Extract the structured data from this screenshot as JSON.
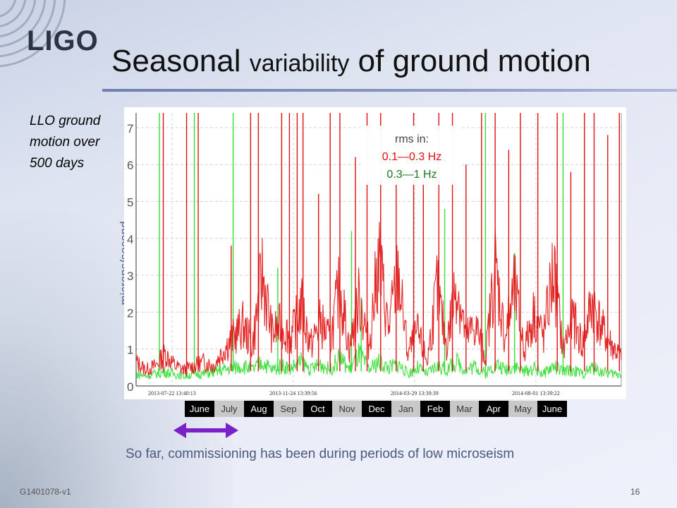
{
  "logo": "LIGO",
  "title": {
    "part1": "Seasonal ",
    "part2": "variability",
    "part3": " of ground motion"
  },
  "side_text": "LLO ground motion over 500 days",
  "caption": "So far, commissioning has been during periods of low microseism",
  "footer": {
    "doc_id": "G1401078-v1",
    "page_number": "16"
  },
  "colors": {
    "series_low": "#e01010",
    "series_high": "#33dd33",
    "title_rule": "#7a88b8",
    "caption": "#4b5a80"
  },
  "months": [
    {
      "label": "June",
      "shade": "dark"
    },
    {
      "label": "July",
      "shade": "light"
    },
    {
      "label": "Aug",
      "shade": "dark"
    },
    {
      "label": "Sep",
      "shade": "light"
    },
    {
      "label": "Oct",
      "shade": "dark"
    },
    {
      "label": "Nov",
      "shade": "light"
    },
    {
      "label": "Dec",
      "shade": "dark"
    },
    {
      "label": "Jan",
      "shade": "light"
    },
    {
      "label": "Feb",
      "shade": "dark"
    },
    {
      "label": "Mar",
      "shade": "light"
    },
    {
      "label": "Apr",
      "shade": "dark"
    },
    {
      "label": "May",
      "shade": "light"
    },
    {
      "label": "June",
      "shade": "dark"
    }
  ],
  "chart_data": {
    "type": "line",
    "title": "",
    "xlabel": "",
    "ylabel": "microns/second",
    "ylim": [
      0,
      7.4
    ],
    "yticks": [
      "0",
      "1",
      "2",
      "3",
      "4",
      "5",
      "6",
      "7"
    ],
    "xticks": [
      "2013-07-22 13:40:13",
      "2013-11-24 13:39:56",
      "2014-03-29 13:39:39",
      "2014-08-01 13:39:22"
    ],
    "x_range_days": [
      0,
      500
    ],
    "xtick_days": [
      37,
      162,
      287,
      412
    ],
    "grid": true,
    "legend": {
      "position": "top-right",
      "heading": "rms in:",
      "entries": [
        "0.1—0.3 Hz",
        "0.3—1 Hz"
      ]
    },
    "series": [
      {
        "name": "0.1—0.3 Hz",
        "color": "#e01010",
        "x": [
          0,
          10,
          20,
          30,
          40,
          50,
          60,
          70,
          80,
          90,
          100,
          110,
          120,
          130,
          140,
          150,
          160,
          170,
          180,
          190,
          200,
          210,
          220,
          230,
          240,
          250,
          260,
          270,
          280,
          290,
          300,
          310,
          320,
          330,
          340,
          350,
          360,
          370,
          380,
          390,
          400,
          410,
          420,
          430,
          440,
          450,
          460,
          470,
          480,
          490,
          500
        ],
        "values": [
          0.6,
          0.4,
          0.5,
          0.8,
          0.5,
          0.4,
          0.5,
          0.6,
          0.5,
          0.9,
          1.2,
          1.5,
          1.0,
          2.8,
          1.3,
          1.5,
          1.2,
          2.0,
          1.0,
          1.6,
          1.1,
          2.5,
          0.9,
          2.2,
          1.0,
          3.2,
          1.4,
          2.8,
          0.8,
          1.3,
          0.6,
          2.4,
          1.0,
          2.6,
          1.2,
          1.5,
          0.7,
          3.0,
          1.2,
          2.4,
          0.9,
          1.8,
          1.2,
          2.9,
          0.9,
          1.7,
          1.0,
          2.1,
          1.4,
          1.0,
          0.7
        ],
        "spikes": [
          {
            "x": 28,
            "y": 7.4
          },
          {
            "x": 52,
            "y": 7.4
          },
          {
            "x": 64,
            "y": 7.4
          },
          {
            "x": 98,
            "y": 3.8
          },
          {
            "x": 118,
            "y": 7.4
          },
          {
            "x": 126,
            "y": 7.4
          },
          {
            "x": 150,
            "y": 7.4
          },
          {
            "x": 158,
            "y": 7.4
          },
          {
            "x": 166,
            "y": 7.4
          },
          {
            "x": 172,
            "y": 7.4
          },
          {
            "x": 188,
            "y": 5.2
          },
          {
            "x": 200,
            "y": 7.4
          },
          {
            "x": 210,
            "y": 7.4
          },
          {
            "x": 226,
            "y": 6.2
          },
          {
            "x": 238,
            "y": 7.4
          },
          {
            "x": 252,
            "y": 7.4
          },
          {
            "x": 268,
            "y": 6.6
          },
          {
            "x": 286,
            "y": 7.4
          },
          {
            "x": 296,
            "y": 5.6
          },
          {
            "x": 312,
            "y": 7.4
          },
          {
            "x": 326,
            "y": 7.4
          },
          {
            "x": 340,
            "y": 6.0
          },
          {
            "x": 356,
            "y": 7.4
          },
          {
            "x": 370,
            "y": 7.4
          },
          {
            "x": 384,
            "y": 6.4
          },
          {
            "x": 396,
            "y": 7.4
          },
          {
            "x": 414,
            "y": 7.4
          },
          {
            "x": 434,
            "y": 7.4
          },
          {
            "x": 448,
            "y": 5.8
          },
          {
            "x": 462,
            "y": 7.4
          },
          {
            "x": 472,
            "y": 7.4
          },
          {
            "x": 486,
            "y": 6.8
          },
          {
            "x": 498,
            "y": 7.4
          }
        ]
      },
      {
        "name": "0.3—1 Hz",
        "color": "#33dd33",
        "x": [
          0,
          10,
          20,
          30,
          40,
          50,
          60,
          70,
          80,
          90,
          100,
          110,
          120,
          130,
          140,
          150,
          160,
          170,
          180,
          190,
          200,
          210,
          220,
          230,
          240,
          250,
          260,
          270,
          280,
          290,
          300,
          310,
          320,
          330,
          340,
          350,
          360,
          370,
          380,
          390,
          400,
          410,
          420,
          430,
          440,
          450,
          460,
          470,
          480,
          490,
          500
        ],
        "values": [
          0.3,
          0.25,
          0.3,
          0.35,
          0.3,
          0.25,
          0.3,
          0.3,
          0.35,
          0.4,
          0.45,
          0.5,
          0.4,
          0.6,
          0.4,
          0.5,
          0.45,
          0.6,
          0.4,
          0.55,
          0.4,
          0.7,
          0.4,
          0.8,
          0.4,
          0.6,
          0.45,
          0.55,
          0.3,
          0.45,
          0.3,
          0.5,
          0.4,
          0.6,
          0.4,
          0.5,
          0.3,
          0.55,
          0.4,
          0.5,
          0.35,
          0.45,
          0.3,
          0.5,
          0.35,
          0.4,
          0.3,
          0.45,
          0.35,
          0.3,
          0.3
        ],
        "spikes": [
          {
            "x": 24,
            "y": 7.4
          },
          {
            "x": 60,
            "y": 7.4
          },
          {
            "x": 100,
            "y": 7.4
          },
          {
            "x": 146,
            "y": 3.2
          },
          {
            "x": 222,
            "y": 4.2
          },
          {
            "x": 232,
            "y": 2.4
          },
          {
            "x": 318,
            "y": 4.8
          },
          {
            "x": 360,
            "y": 7.4
          },
          {
            "x": 390,
            "y": 3.6
          },
          {
            "x": 440,
            "y": 7.4
          }
        ]
      }
    ]
  }
}
